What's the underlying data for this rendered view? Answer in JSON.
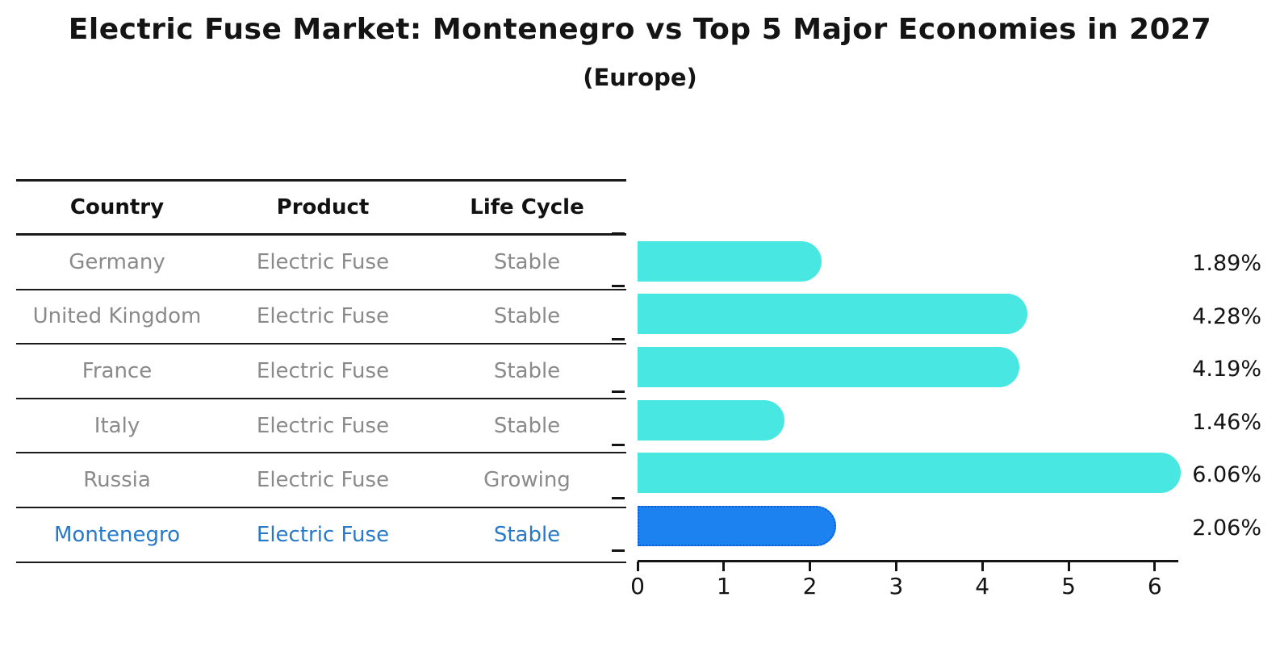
{
  "header": {
    "title": "Electric Fuse Market: Montenegro vs Top 5 Major Economies in 2027",
    "subtitle": "(Europe)"
  },
  "table": {
    "columns": [
      "Country",
      "Product",
      "Life Cycle"
    ],
    "rows": [
      {
        "country": "Germany",
        "product": "Electric Fuse",
        "life_cycle": "Stable",
        "highlight": false
      },
      {
        "country": "United Kingdom",
        "product": "Electric Fuse",
        "life_cycle": "Stable",
        "highlight": false
      },
      {
        "country": "France",
        "product": "Electric Fuse",
        "life_cycle": "Stable",
        "highlight": false
      },
      {
        "country": "Italy",
        "product": "Electric Fuse",
        "life_cycle": "Stable",
        "highlight": false
      },
      {
        "country": "Russia",
        "product": "Electric Fuse",
        "life_cycle": "Growing",
        "highlight": false
      },
      {
        "country": "Montenegro",
        "product": "Electric Fuse",
        "life_cycle": "Stable",
        "highlight": true
      }
    ]
  },
  "chart_data": {
    "type": "bar",
    "orientation": "horizontal",
    "title": "Electric Fuse Market: Montenegro vs Top 5 Major Economies in 2027",
    "subtitle": "(Europe)",
    "categories": [
      "Germany",
      "United Kingdom",
      "France",
      "Italy",
      "Russia",
      "Montenegro"
    ],
    "values": [
      1.89,
      4.28,
      4.19,
      1.46,
      6.06,
      2.06
    ],
    "value_labels": [
      "1.89%",
      "4.28%",
      "4.19%",
      "1.46%",
      "6.06%",
      "2.06%"
    ],
    "x_ticks": [
      "0",
      "1",
      "2",
      "3",
      "4",
      "5",
      "6"
    ],
    "xlim": [
      0,
      6.3
    ],
    "grid": false,
    "legend": "none",
    "bar_color": "#48E7E1",
    "highlight_color": "#1B82F0",
    "highlight_border_color": "#0C5ED2",
    "highlight_index": 5
  }
}
